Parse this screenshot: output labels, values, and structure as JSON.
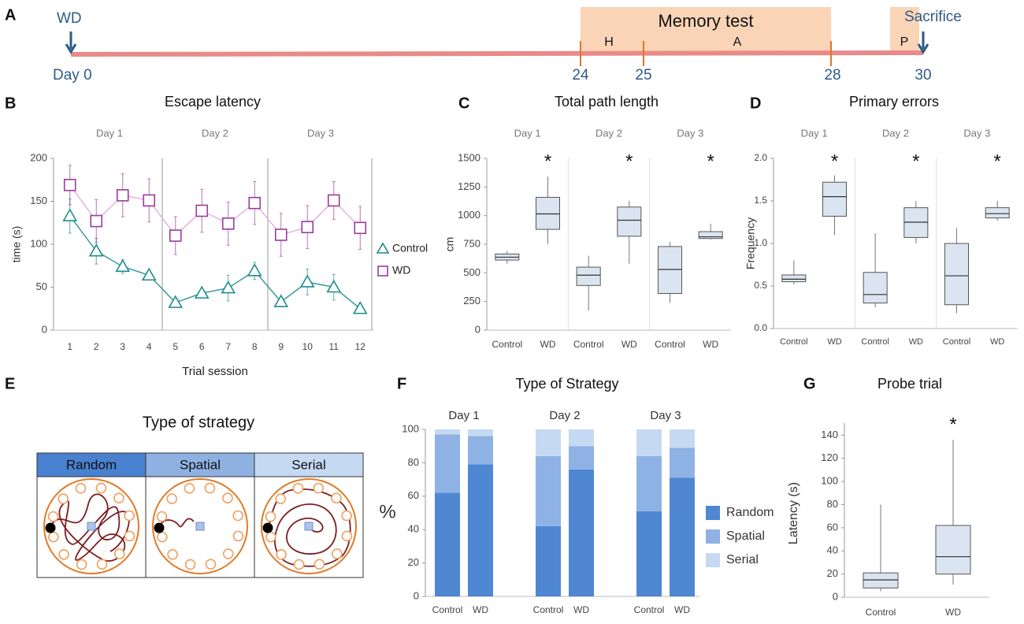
{
  "panels": [
    "A",
    "B",
    "C",
    "D",
    "E",
    "F",
    "G"
  ],
  "timeline": {
    "start_label": "WD",
    "day0": "Day 0",
    "memory_test": "Memory test",
    "phases": [
      "H",
      "A",
      "P"
    ],
    "days": [
      "24",
      "25",
      "28",
      "30"
    ],
    "end_label": "Sacrifice"
  },
  "strategy_diagram": {
    "title": "Type of strategy",
    "types": [
      "Random",
      "Spatial",
      "Serial"
    ]
  },
  "chart_data": [
    {
      "type": "line",
      "title": "Escape latency",
      "x_label": "Trial session",
      "y_label": "time (s)",
      "groups": [
        "Day 1",
        "Day 2",
        "Day 3"
      ],
      "categories": [
        "1",
        "2",
        "3",
        "4",
        "5",
        "6",
        "7",
        "8",
        "9",
        "10",
        "11",
        "12"
      ],
      "ylim": [
        0,
        200
      ],
      "yticks": [
        0,
        50,
        100,
        150,
        200
      ],
      "grid": false,
      "legend": "right",
      "series": [
        {
          "name": "Control",
          "color": "#1f8c8c",
          "line_color": "#3a9a9a",
          "marker": "triangle",
          "values": [
            133,
            92,
            74,
            64,
            32,
            43,
            49,
            69,
            33,
            56,
            50,
            25
          ],
          "errors": [
            20,
            15,
            8,
            5,
            5,
            5,
            15,
            10,
            5,
            15,
            15,
            4
          ]
        },
        {
          "name": "WD",
          "color": "#9b3b9b",
          "line_color": "#e6b3df",
          "marker": "square",
          "values": [
            169,
            127,
            157,
            151,
            110,
            139,
            124,
            148,
            111,
            120,
            151,
            119
          ],
          "errors": [
            23,
            25,
            25,
            25,
            22,
            25,
            25,
            25,
            25,
            25,
            22,
            25
          ]
        }
      ]
    },
    {
      "type": "box",
      "title": "Total path length",
      "y_label": "cm",
      "groups": [
        "Day 1",
        "Day 2",
        "Day 3"
      ],
      "categories": [
        "Control",
        "WD",
        "Control",
        "WD",
        "Control",
        "WD"
      ],
      "ylim": [
        0,
        1500
      ],
      "yticks": [
        0,
        250,
        500,
        750,
        1000,
        1250,
        1500
      ],
      "grid": false,
      "color": "#dbe5f1",
      "boxes": [
        {
          "min": 580,
          "q1": 612,
          "median": 637,
          "q3": 665,
          "max": 690
        },
        {
          "min": 750,
          "q1": 880,
          "median": 1015,
          "q3": 1160,
          "max": 1340
        },
        {
          "min": 170,
          "q1": 390,
          "median": 480,
          "q3": 550,
          "max": 650
        },
        {
          "min": 580,
          "q1": 820,
          "median": 960,
          "q3": 1075,
          "max": 1130
        },
        {
          "min": 240,
          "q1": 320,
          "median": 530,
          "q3": 730,
          "max": 770
        },
        {
          "min": 790,
          "q1": 800,
          "median": 815,
          "q3": 860,
          "max": 930
        }
      ],
      "annotations": [
        "*",
        "*",
        "*"
      ]
    },
    {
      "type": "box",
      "title": "Primary errors",
      "y_label": "Frequency",
      "groups": [
        "Day 1",
        "Day 2",
        "Day 3"
      ],
      "categories": [
        "Control",
        "WD",
        "Control",
        "WD",
        "Control",
        "WD"
      ],
      "ylim": [
        0,
        2
      ],
      "yticks": [
        {
          "value": 0,
          "label": "0.0"
        },
        {
          "value": 0.5,
          "label": "0.5"
        },
        {
          "value": 1,
          "label": "1.0"
        },
        {
          "value": 1.5,
          "label": "1.5"
        },
        {
          "value": 2,
          "label": "2.0"
        }
      ],
      "grid": false,
      "color": "#dbe5f1",
      "boxes": [
        {
          "min": 0.52,
          "q1": 0.55,
          "median": 0.58,
          "q3": 0.63,
          "max": 0.8
        },
        {
          "min": 1.1,
          "q1": 1.32,
          "median": 1.55,
          "q3": 1.72,
          "max": 1.8
        },
        {
          "min": 0.25,
          "q1": 0.3,
          "median": 0.4,
          "q3": 0.66,
          "max": 1.12
        },
        {
          "min": 1.0,
          "q1": 1.07,
          "median": 1.25,
          "q3": 1.42,
          "max": 1.5
        },
        {
          "min": 0.18,
          "q1": 0.28,
          "median": 0.62,
          "q3": 1.0,
          "max": 1.18
        },
        {
          "min": 1.27,
          "q1": 1.3,
          "median": 1.35,
          "q3": 1.42,
          "max": 1.5
        }
      ],
      "annotations": [
        "*",
        "*",
        "*"
      ]
    },
    {
      "type": "stacked_bar",
      "title": "Type of Strategy",
      "y_label": "%",
      "groups": [
        "Day 1",
        "Day 2",
        "Day 3"
      ],
      "categories": [
        "Control",
        "WD",
        "Control",
        "WD",
        "Control",
        "WD"
      ],
      "ylim": [
        0,
        100
      ],
      "yticks": [
        0,
        20,
        40,
        60,
        80,
        100
      ],
      "grid": false,
      "legend": "right",
      "series": [
        {
          "name": "Random",
          "color": "#4f87d3",
          "values": [
            62,
            79,
            42,
            76,
            51,
            71
          ]
        },
        {
          "name": "Spatial",
          "color": "#8fb2e4",
          "values": [
            35,
            17,
            42,
            14,
            33,
            18
          ]
        },
        {
          "name": "Serial",
          "color": "#c6d9f2",
          "values": [
            3,
            4,
            16,
            10,
            16,
            11
          ]
        }
      ]
    },
    {
      "type": "box",
      "title": "Probe trial",
      "y_label": "Latency (s)",
      "categories": [
        "Control",
        "WD"
      ],
      "ylim": [
        0,
        145
      ],
      "yticks": [
        0,
        20,
        40,
        60,
        80,
        100,
        120,
        140
      ],
      "grid": false,
      "color": "#dbe5f1",
      "boxes": [
        {
          "min": 5,
          "q1": 8,
          "median": 15,
          "q3": 21,
          "max": 80
        },
        {
          "min": 11,
          "q1": 20,
          "median": 35,
          "q3": 62,
          "max": 136
        }
      ],
      "annotations": [
        "*"
      ]
    }
  ]
}
